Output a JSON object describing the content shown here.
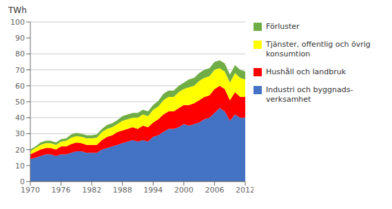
{
  "chart_data": {
    "type": "area",
    "stacked": true,
    "ylabel": "TWh",
    "x": [
      1970,
      1971,
      1972,
      1973,
      1974,
      1975,
      1976,
      1977,
      1978,
      1979,
      1980,
      1981,
      1982,
      1983,
      1984,
      1985,
      1986,
      1987,
      1988,
      1989,
      1990,
      1991,
      1992,
      1993,
      1994,
      1995,
      1996,
      1997,
      1998,
      1999,
      2000,
      2001,
      2002,
      2003,
      2004,
      2005,
      2006,
      2007,
      2008,
      2009,
      2010,
      2011,
      2012
    ],
    "series": [
      {
        "name": "Industri och byggnads-\nverksamhet",
        "color": "#4472C4",
        "values": [
          14,
          15,
          16,
          17,
          17,
          16,
          17,
          17,
          18,
          19,
          19,
          18,
          18,
          18,
          20,
          21,
          22,
          23,
          24,
          25,
          26,
          25,
          26,
          25,
          28,
          29,
          31,
          33,
          33,
          34,
          36,
          35,
          36,
          37,
          39,
          40,
          43,
          46,
          44,
          38,
          42,
          40,
          40
        ]
      },
      {
        "name": "Hushåll och landbruk",
        "color": "#FF0000",
        "values": [
          3,
          3.5,
          4,
          4,
          4,
          4,
          5,
          5,
          5.5,
          5.5,
          5,
          5,
          5,
          5,
          6,
          7,
          7,
          8,
          8,
          8,
          8,
          8,
          9,
          9,
          9,
          10,
          11,
          11,
          11,
          12,
          12,
          13,
          13,
          14,
          14,
          14,
          15,
          14,
          14,
          13,
          14,
          13,
          13
        ]
      },
      {
        "name": "Tjänster, offentlig och övrig\nkonsumtion",
        "color": "#FFFF00",
        "values": [
          2,
          2.5,
          3,
          3,
          3,
          3,
          3,
          3.5,
          4,
          4,
          4,
          4,
          4,
          4.5,
          5,
          5,
          5,
          5,
          6,
          6,
          6,
          7,
          7,
          7,
          8,
          8,
          9,
          9,
          9,
          10,
          10,
          11,
          11,
          12,
          12,
          12,
          12,
          11,
          11,
          11,
          12,
          12,
          11
        ]
      },
      {
        "name": "Förluster",
        "color": "#70AD47",
        "values": [
          1,
          1,
          1.5,
          1.5,
          1.5,
          1.5,
          1.5,
          1.5,
          2,
          2,
          2,
          2,
          2,
          2,
          2,
          2.5,
          2.5,
          2.5,
          3,
          3,
          3,
          3,
          3,
          3,
          3,
          3.5,
          4,
          4,
          4,
          4,
          4,
          5,
          5,
          5,
          5,
          5,
          5,
          5,
          5,
          5,
          5,
          5,
          5
        ]
      }
    ],
    "xlim": [
      1970,
      2012
    ],
    "xticks": [
      1970,
      1976,
      1982,
      1988,
      1994,
      2000,
      2006,
      2012
    ],
    "ylim": [
      0,
      100
    ],
    "yticks": [
      0,
      10,
      20,
      30,
      40,
      50,
      60,
      70,
      80,
      90,
      100
    ],
    "grid": true,
    "legend": "right"
  }
}
